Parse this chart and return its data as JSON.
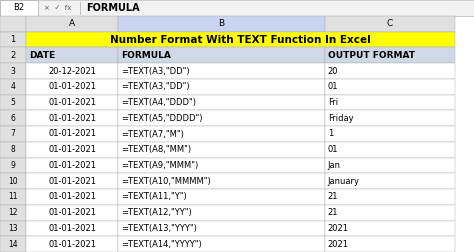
{
  "title": "Number Format With TEXT Function In Excel",
  "title_bg": "#FFFF00",
  "formula_bar_text": "FORMULA",
  "cell_ref": "B2",
  "col_props": [
    0.055,
    0.195,
    0.435,
    0.275
  ],
  "headers": [
    "DATE",
    "FORMULA",
    "OUTPUT FORMAT"
  ],
  "rows": [
    [
      "20-12-2021",
      "=TEXT(A3,\"DD\")",
      "20"
    ],
    [
      "01-01-2021",
      "=TEXT(A3,\"DD\")",
      "01"
    ],
    [
      "01-01-2021",
      "=TEXT(A4,\"DDD\")",
      "Fri"
    ],
    [
      "01-01-2021",
      "=TEXT(A5,\"DDDD\")",
      "Friday"
    ],
    [
      "01-01-2021",
      "=TEXT(A7,\"M\")",
      "1"
    ],
    [
      "01-01-2021",
      "=TEXT(A8,\"MM\")",
      "01"
    ],
    [
      "01-01-2021",
      "=TEXT(A9,\"MMM\")",
      "Jan"
    ],
    [
      "01-01-2021",
      "=TEXT(A10,\"MMMM\")",
      "January"
    ],
    [
      "01-01-2021",
      "=TEXT(A11,\"Y\")",
      "21"
    ],
    [
      "01-01-2021",
      "=TEXT(A12,\"YY\")",
      "21"
    ],
    [
      "01-01-2021",
      "=TEXT(A13,\"YYY\")",
      "2021"
    ],
    [
      "01-01-2021",
      "=TEXT(A14,\"YYYY\")",
      "2021"
    ]
  ],
  "row_numbers": [
    "3",
    "4",
    "5",
    "6",
    "7",
    "8",
    "9",
    "10",
    "11",
    "12",
    "13",
    "14"
  ]
}
